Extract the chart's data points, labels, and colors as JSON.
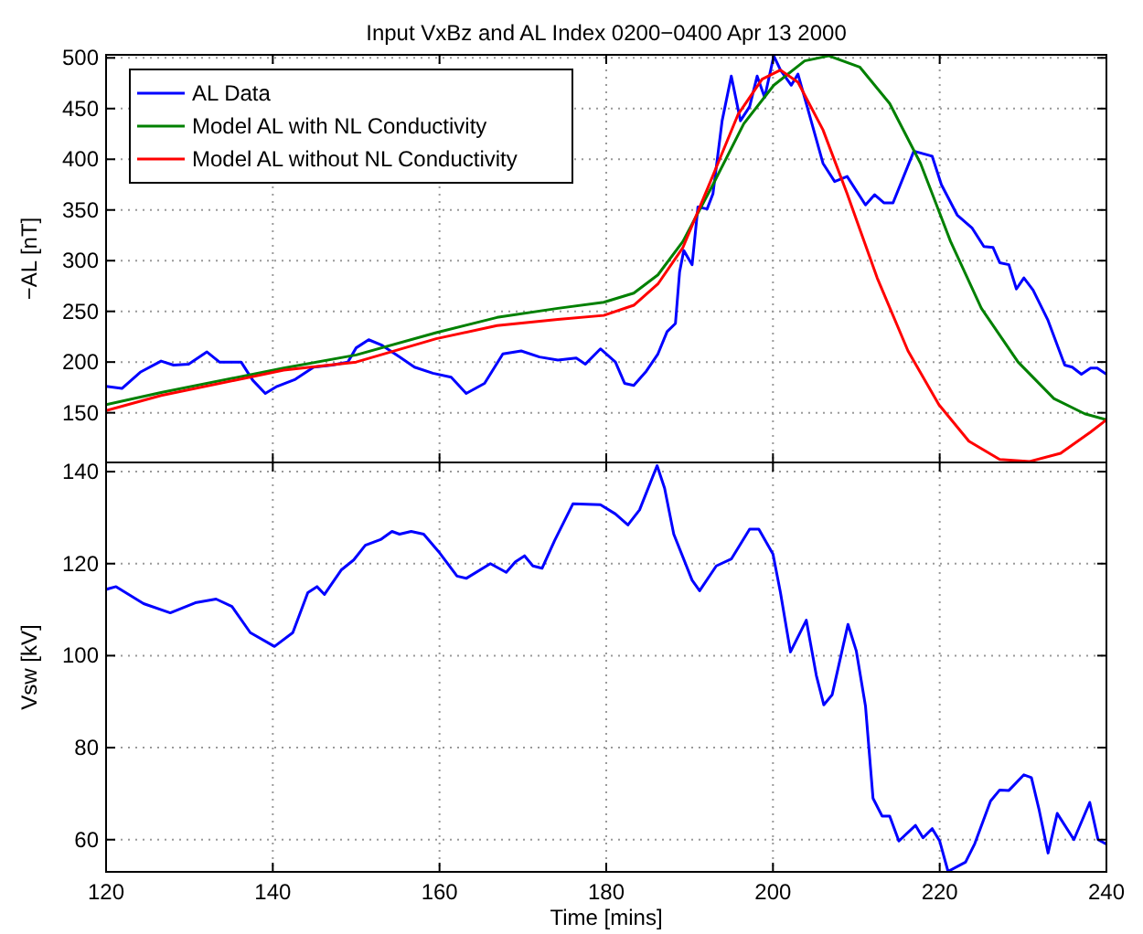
{
  "chart_data": [
    {
      "type": "line",
      "title": "Input VxBz and AL Index 0200−0400 Apr 13 2000",
      "ylabel": "−AL [nT]",
      "xlim": [
        120,
        240
      ],
      "xticks": [
        120,
        140,
        160,
        180,
        200,
        220,
        240
      ],
      "ylim": [
        101,
        503
      ],
      "yticks": [
        150,
        200,
        250,
        300,
        350,
        400,
        450,
        500
      ],
      "grid": true,
      "legend": "top left",
      "tick_labels": "y",
      "line_style": "solid",
      "series": [
        {
          "name": "AL Data",
          "color": "#0000ff",
          "x": [
            120,
            121.9,
            124.1,
            126.6,
            128.1,
            129.9,
            132.1,
            133.6,
            136.2,
            137.6,
            139.1,
            140.5,
            142.7,
            144.9,
            147.1,
            149,
            150,
            151.5,
            153,
            155.2,
            157,
            159.2,
            161.4,
            163.2,
            165.4,
            167.6,
            169.8,
            172,
            174.2,
            176.4,
            177.5,
            179.3,
            181.1,
            182.2,
            183.3,
            184.8,
            186.2,
            187.3,
            188.3,
            188.8,
            189.3,
            190.3,
            191,
            192.1,
            192.8,
            193.9,
            195,
            196.1,
            197.2,
            198.1,
            199,
            200.1,
            200.9,
            202.2,
            203,
            204.1,
            206,
            207.4,
            208.9,
            211.1,
            212.2,
            213.3,
            214.4,
            216.9,
            219.1,
            220.2,
            222.1,
            223.9,
            225.3,
            226.4,
            227.2,
            228.3,
            229.2,
            230.1,
            231.2,
            233,
            235,
            235.9,
            237,
            238.1,
            238.9,
            240
          ],
          "values": [
            176,
            174,
            190,
            201,
            197,
            198,
            210,
            200,
            200,
            182,
            169,
            176,
            183,
            195,
            197,
            200,
            214,
            222,
            217,
            205,
            195,
            189,
            185,
            169,
            179,
            208,
            211,
            205,
            202,
            204,
            198,
            213,
            200,
            179,
            177,
            191,
            208,
            230,
            238,
            289,
            310,
            296,
            353,
            351,
            366,
            438,
            482,
            438,
            452,
            482,
            461,
            502,
            488,
            473,
            484,
            452,
            396,
            378,
            383,
            355,
            365,
            357,
            357,
            408,
            403,
            375,
            345,
            332,
            314,
            313,
            298,
            296,
            272,
            283,
            271,
            241,
            197,
            195,
            188,
            194,
            194,
            188
          ]
        },
        {
          "name": "Model AL with NL Conductivity",
          "color": "#008000",
          "x": [
            120,
            126.6,
            141.3,
            150,
            159.6,
            166.9,
            174.2,
            179.7,
            183.3,
            186.2,
            189.2,
            192.8,
            196.5,
            200.1,
            203.8,
            206.7,
            210.4,
            214,
            217.7,
            221.3,
            225,
            229.4,
            233.7,
            237.4,
            240
          ],
          "values": [
            158,
            170,
            194,
            207,
            229,
            244,
            253,
            259,
            268,
            286,
            319,
            375,
            435,
            473,
            497,
            502,
            491,
            455,
            396,
            319,
            253,
            200,
            164,
            149,
            143
          ]
        },
        {
          "name": "Model AL without NL Conductivity",
          "color": "#ff0000",
          "x": [
            120,
            126.6,
            141.3,
            150,
            159.6,
            166.9,
            174.2,
            179.7,
            183.3,
            186.2,
            189.2,
            192.8,
            195.8,
            198.7,
            200.9,
            203,
            206,
            208.9,
            212.5,
            216.2,
            219.9,
            223.5,
            227.2,
            230.8,
            234.5,
            238.1,
            240
          ],
          "values": [
            152,
            167,
            192,
            200,
            223,
            236,
            242,
            246,
            256,
            277,
            313,
            384,
            444,
            479,
            488,
            476,
            429,
            366,
            283,
            211,
            158,
            122,
            104,
            102,
            110,
            131,
            143
          ]
        }
      ]
    },
    {
      "type": "line",
      "xlabel": "Time [mins]",
      "ylabel": "Vsw [kV]",
      "xlim": [
        120,
        240
      ],
      "xticks": [
        120,
        140,
        160,
        180,
        200,
        220,
        240
      ],
      "ylim": [
        53,
        142
      ],
      "yticks": [
        60,
        80,
        100,
        120,
        140
      ],
      "grid": true,
      "line_style": "solid",
      "series": [
        {
          "color": "#0000ff",
          "x": [
            120,
            121.2,
            124.5,
            127.7,
            130.7,
            133.2,
            135.1,
            137.3,
            140.2,
            142.4,
            144.2,
            145.3,
            146.2,
            148.2,
            149.7,
            151.1,
            153,
            154.3,
            155.2,
            156.6,
            158.1,
            159.9,
            162.1,
            163.2,
            166.1,
            168,
            169.1,
            170.2,
            171.2,
            172.3,
            173.8,
            176,
            179.3,
            181.1,
            182.6,
            184,
            186.1,
            187,
            188.1,
            190.3,
            191.2,
            193.2,
            195,
            197.2,
            198.3,
            200,
            200.9,
            202.1,
            204,
            205.2,
            206.1,
            207.1,
            209,
            210,
            211.1,
            212,
            213.1,
            214,
            215.1,
            217.1,
            218,
            219.1,
            220,
            221,
            223.1,
            224.2,
            226.1,
            227.2,
            228.3,
            230.1,
            231,
            231.9,
            233,
            234.1,
            236.1,
            238,
            239,
            240
          ],
          "values": [
            114.4,
            115,
            111.3,
            109.3,
            111.5,
            112.3,
            110.7,
            105,
            102,
            105,
            113.7,
            115,
            113.3,
            118.6,
            120.8,
            124,
            125.3,
            127,
            126.4,
            127,
            126.4,
            122.6,
            117.3,
            116.8,
            120,
            118.1,
            120.4,
            121.7,
            119.5,
            119,
            125,
            133,
            132.8,
            130.8,
            128.4,
            131.7,
            141.3,
            136.4,
            126.4,
            116.4,
            114.1,
            119.5,
            121,
            127.5,
            127.5,
            122.1,
            113.7,
            100.8,
            107.7,
            95.7,
            89.3,
            91.5,
            106.8,
            101,
            89,
            69,
            65.1,
            65.1,
            59.7,
            63.1,
            60.4,
            62.4,
            59.7,
            53.1,
            55.1,
            59.1,
            68.4,
            70.8,
            70.7,
            74.1,
            73.5,
            66.7,
            57.1,
            65.7,
            60,
            68.1,
            60,
            59
          ]
        }
      ]
    }
  ]
}
